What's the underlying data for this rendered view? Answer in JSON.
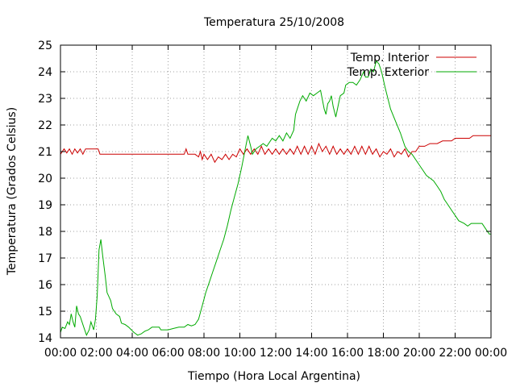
{
  "chart_data": {
    "type": "line",
    "title": "Temperatura 25/10/2008",
    "xlabel": "Tiempo (Hora Local Argentina)",
    "ylabel": "Temperatura (Grados Celsius)",
    "xlim": [
      0,
      24
    ],
    "ylim": [
      14,
      25
    ],
    "x_ticks": [
      0,
      2,
      4,
      6,
      8,
      10,
      12,
      14,
      16,
      18,
      20,
      22,
      24
    ],
    "x_tick_labels": [
      "00:00",
      "02:00",
      "04:00",
      "06:00",
      "08:00",
      "10:00",
      "12:00",
      "14:00",
      "16:00",
      "18:00",
      "20:00",
      "22:00",
      "00:00"
    ],
    "y_ticks": [
      14,
      15,
      16,
      17,
      18,
      19,
      20,
      21,
      22,
      23,
      24,
      25
    ],
    "y_tick_labels": [
      "14",
      "15",
      "16",
      "17",
      "18",
      "19",
      "20",
      "21",
      "22",
      "23",
      "24",
      "25"
    ],
    "grid": true,
    "legend_position": "top-right",
    "series": [
      {
        "name": "Temp. Interior",
        "color": "#cc0000",
        "points": [
          [
            0.0,
            20.9
          ],
          [
            0.2,
            21.1
          ],
          [
            0.35,
            20.95
          ],
          [
            0.5,
            21.1
          ],
          [
            0.65,
            20.9
          ],
          [
            0.8,
            21.1
          ],
          [
            0.95,
            20.95
          ],
          [
            1.1,
            21.1
          ],
          [
            1.25,
            20.9
          ],
          [
            1.4,
            21.1
          ],
          [
            1.6,
            21.1
          ],
          [
            1.9,
            21.1
          ],
          [
            2.1,
            21.1
          ],
          [
            2.2,
            20.9
          ],
          [
            3.0,
            20.9
          ],
          [
            4.0,
            20.9
          ],
          [
            5.0,
            20.9
          ],
          [
            6.0,
            20.9
          ],
          [
            6.9,
            20.9
          ],
          [
            7.0,
            21.1
          ],
          [
            7.1,
            20.9
          ],
          [
            7.5,
            20.9
          ],
          [
            7.7,
            20.8
          ],
          [
            7.8,
            21.0
          ],
          [
            7.9,
            20.7
          ],
          [
            8.0,
            20.9
          ],
          [
            8.2,
            20.7
          ],
          [
            8.4,
            20.9
          ],
          [
            8.6,
            20.6
          ],
          [
            8.8,
            20.8
          ],
          [
            9.0,
            20.7
          ],
          [
            9.2,
            20.9
          ],
          [
            9.4,
            20.7
          ],
          [
            9.6,
            20.9
          ],
          [
            9.8,
            20.8
          ],
          [
            10.0,
            21.1
          ],
          [
            10.2,
            20.9
          ],
          [
            10.4,
            21.1
          ],
          [
            10.6,
            20.9
          ],
          [
            10.8,
            21.1
          ],
          [
            11.0,
            20.9
          ],
          [
            11.2,
            21.2
          ],
          [
            11.4,
            20.9
          ],
          [
            11.6,
            21.1
          ],
          [
            11.8,
            20.9
          ],
          [
            12.0,
            21.1
          ],
          [
            12.2,
            20.9
          ],
          [
            12.4,
            21.1
          ],
          [
            12.6,
            20.9
          ],
          [
            12.8,
            21.1
          ],
          [
            13.0,
            20.9
          ],
          [
            13.2,
            21.2
          ],
          [
            13.4,
            20.9
          ],
          [
            13.6,
            21.2
          ],
          [
            13.8,
            20.9
          ],
          [
            14.0,
            21.2
          ],
          [
            14.2,
            20.9
          ],
          [
            14.4,
            21.3
          ],
          [
            14.6,
            21.0
          ],
          [
            14.8,
            21.2
          ],
          [
            15.0,
            20.9
          ],
          [
            15.2,
            21.2
          ],
          [
            15.4,
            20.9
          ],
          [
            15.6,
            21.1
          ],
          [
            15.8,
            20.9
          ],
          [
            16.0,
            21.1
          ],
          [
            16.2,
            20.9
          ],
          [
            16.4,
            21.2
          ],
          [
            16.6,
            20.9
          ],
          [
            16.8,
            21.2
          ],
          [
            17.0,
            20.9
          ],
          [
            17.2,
            21.2
          ],
          [
            17.4,
            20.9
          ],
          [
            17.6,
            21.1
          ],
          [
            17.8,
            20.8
          ],
          [
            18.0,
            21.0
          ],
          [
            18.2,
            20.9
          ],
          [
            18.4,
            21.1
          ],
          [
            18.6,
            20.8
          ],
          [
            18.8,
            21.0
          ],
          [
            19.0,
            20.9
          ],
          [
            19.2,
            21.1
          ],
          [
            19.4,
            20.8
          ],
          [
            19.6,
            21.0
          ],
          [
            19.8,
            21.0
          ],
          [
            20.0,
            21.2
          ],
          [
            20.3,
            21.2
          ],
          [
            20.6,
            21.3
          ],
          [
            21.0,
            21.3
          ],
          [
            21.3,
            21.4
          ],
          [
            21.8,
            21.4
          ],
          [
            22.0,
            21.5
          ],
          [
            22.8,
            21.5
          ],
          [
            23.0,
            21.6
          ],
          [
            24.0,
            21.6
          ]
        ]
      },
      {
        "name": "Temp. Exterior",
        "color": "#00aa00",
        "points": [
          [
            0.0,
            14.2
          ],
          [
            0.1,
            14.4
          ],
          [
            0.25,
            14.35
          ],
          [
            0.4,
            14.6
          ],
          [
            0.5,
            14.5
          ],
          [
            0.6,
            14.9
          ],
          [
            0.7,
            14.6
          ],
          [
            0.8,
            14.4
          ],
          [
            0.9,
            15.2
          ],
          [
            1.0,
            14.9
          ],
          [
            1.1,
            14.8
          ],
          [
            1.2,
            14.6
          ],
          [
            1.3,
            14.4
          ],
          [
            1.45,
            14.1
          ],
          [
            1.6,
            14.3
          ],
          [
            1.7,
            14.6
          ],
          [
            1.85,
            14.3
          ],
          [
            1.95,
            14.7
          ],
          [
            2.05,
            15.6
          ],
          [
            2.15,
            17.3
          ],
          [
            2.25,
            17.7
          ],
          [
            2.35,
            17.1
          ],
          [
            2.5,
            16.3
          ],
          [
            2.6,
            15.7
          ],
          [
            2.8,
            15.4
          ],
          [
            2.9,
            15.1
          ],
          [
            3.1,
            14.9
          ],
          [
            3.3,
            14.8
          ],
          [
            3.4,
            14.55
          ],
          [
            3.6,
            14.5
          ],
          [
            3.8,
            14.4
          ],
          [
            3.95,
            14.3
          ],
          [
            4.1,
            14.2
          ],
          [
            4.3,
            14.1
          ],
          [
            4.5,
            14.15
          ],
          [
            4.7,
            14.25
          ],
          [
            4.9,
            14.3
          ],
          [
            5.1,
            14.4
          ],
          [
            5.5,
            14.4
          ],
          [
            5.6,
            14.3
          ],
          [
            6.0,
            14.3
          ],
          [
            6.3,
            14.35
          ],
          [
            6.6,
            14.4
          ],
          [
            6.9,
            14.4
          ],
          [
            7.1,
            14.5
          ],
          [
            7.3,
            14.45
          ],
          [
            7.5,
            14.5
          ],
          [
            7.7,
            14.7
          ],
          [
            7.9,
            15.2
          ],
          [
            8.1,
            15.7
          ],
          [
            8.3,
            16.1
          ],
          [
            8.5,
            16.5
          ],
          [
            8.7,
            16.9
          ],
          [
            8.9,
            17.3
          ],
          [
            9.1,
            17.7
          ],
          [
            9.3,
            18.2
          ],
          [
            9.5,
            18.8
          ],
          [
            9.7,
            19.3
          ],
          [
            9.9,
            19.8
          ],
          [
            10.1,
            20.4
          ],
          [
            10.3,
            21.1
          ],
          [
            10.45,
            21.6
          ],
          [
            10.6,
            21.2
          ],
          [
            10.7,
            20.9
          ],
          [
            10.9,
            21.1
          ],
          [
            11.1,
            21.2
          ],
          [
            11.3,
            21.3
          ],
          [
            11.5,
            21.2
          ],
          [
            11.6,
            21.3
          ],
          [
            11.8,
            21.5
          ],
          [
            12.0,
            21.4
          ],
          [
            12.2,
            21.6
          ],
          [
            12.4,
            21.4
          ],
          [
            12.6,
            21.7
          ],
          [
            12.8,
            21.5
          ],
          [
            13.0,
            21.8
          ],
          [
            13.1,
            22.4
          ],
          [
            13.2,
            22.6
          ],
          [
            13.35,
            22.9
          ],
          [
            13.5,
            23.1
          ],
          [
            13.7,
            22.9
          ],
          [
            13.9,
            23.2
          ],
          [
            14.1,
            23.1
          ],
          [
            14.3,
            23.2
          ],
          [
            14.5,
            23.3
          ],
          [
            14.7,
            22.6
          ],
          [
            14.8,
            22.4
          ],
          [
            14.9,
            22.8
          ],
          [
            15.0,
            22.9
          ],
          [
            15.1,
            23.1
          ],
          [
            15.2,
            22.7
          ],
          [
            15.35,
            22.3
          ],
          [
            15.5,
            22.8
          ],
          [
            15.6,
            23.1
          ],
          [
            15.8,
            23.2
          ],
          [
            15.9,
            23.5
          ],
          [
            16.1,
            23.6
          ],
          [
            16.3,
            23.6
          ],
          [
            16.5,
            23.5
          ],
          [
            16.7,
            23.7
          ],
          [
            16.9,
            24.0
          ],
          [
            17.0,
            23.8
          ],
          [
            17.15,
            23.8
          ],
          [
            17.3,
            24.1
          ],
          [
            17.45,
            24.0
          ],
          [
            17.6,
            24.4
          ],
          [
            17.75,
            24.3
          ],
          [
            17.9,
            24.0
          ],
          [
            18.1,
            23.4
          ],
          [
            18.4,
            22.6
          ],
          [
            18.7,
            22.1
          ],
          [
            18.95,
            21.7
          ],
          [
            19.2,
            21.2
          ],
          [
            19.4,
            21.0
          ],
          [
            19.6,
            20.9
          ],
          [
            19.8,
            20.7
          ],
          [
            20.0,
            20.5
          ],
          [
            20.2,
            20.3
          ],
          [
            20.4,
            20.1
          ],
          [
            20.6,
            20.0
          ],
          [
            20.8,
            19.9
          ],
          [
            21.0,
            19.7
          ],
          [
            21.2,
            19.5
          ],
          [
            21.4,
            19.2
          ],
          [
            21.6,
            19.0
          ],
          [
            21.8,
            18.8
          ],
          [
            22.0,
            18.6
          ],
          [
            22.2,
            18.4
          ],
          [
            22.5,
            18.3
          ],
          [
            22.7,
            18.2
          ],
          [
            22.9,
            18.3
          ],
          [
            23.2,
            18.3
          ],
          [
            23.5,
            18.3
          ],
          [
            23.7,
            18.1
          ],
          [
            23.9,
            17.9
          ],
          [
            24.0,
            17.9
          ]
        ]
      }
    ]
  }
}
